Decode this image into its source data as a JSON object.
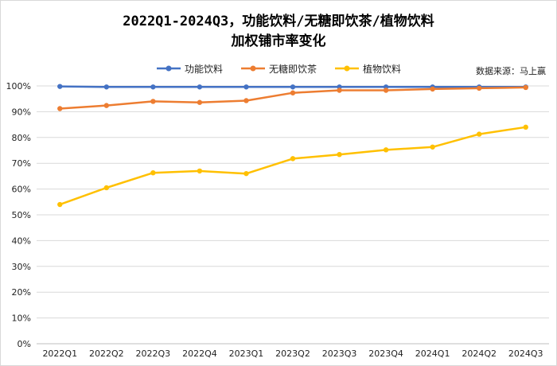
{
  "chart_data": {
    "type": "line",
    "title": "2022Q1-2024Q3，功能饮料/无糖即饮茶/植物饮料",
    "subtitle": "加权铺市率变化",
    "source": "数据来源：马上赢",
    "categories": [
      "2022Q1",
      "2022Q2",
      "2022Q3",
      "2022Q4",
      "2023Q1",
      "2023Q2",
      "2023Q3",
      "2023Q4",
      "2024Q1",
      "2024Q2",
      "2024Q3"
    ],
    "y_tick_labels": [
      "0%",
      "10%",
      "20%",
      "30%",
      "40%",
      "50%",
      "60%",
      "70%",
      "80%",
      "90%",
      "100%"
    ],
    "ylim": [
      0,
      100
    ],
    "grid": true,
    "legend_position": "top",
    "series": [
      {
        "name": "功能饮料",
        "color": "#4472c4",
        "values": [
          99.8,
          99.6,
          99.6,
          99.6,
          99.6,
          99.6,
          99.6,
          99.6,
          99.6,
          99.6,
          99.6
        ]
      },
      {
        "name": "无糖即饮茶",
        "color": "#ed7d31",
        "values": [
          91.2,
          92.4,
          94.0,
          93.6,
          94.3,
          97.3,
          98.3,
          98.3,
          98.8,
          99.1,
          99.4
        ]
      },
      {
        "name": "植物饮料",
        "color": "#ffc000",
        "values": [
          54.0,
          60.5,
          66.3,
          67.0,
          66.0,
          71.8,
          73.4,
          75.2,
          76.3,
          81.3,
          84.0
        ]
      }
    ]
  }
}
